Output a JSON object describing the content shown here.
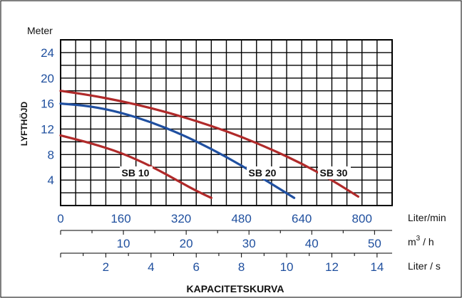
{
  "chart_data": {
    "type": "line",
    "title": "KAPACITETSKURVA",
    "ylabel": "LYFTHÖJD",
    "y_unit_label": "Meter",
    "ylim": [
      0,
      26
    ],
    "y_ticks": [
      4,
      8,
      12,
      16,
      20,
      24
    ],
    "xlim": [
      0,
      880
    ],
    "x_axes": [
      {
        "name": "Liter/min",
        "ticks": [
          0,
          160,
          320,
          480,
          640,
          800
        ],
        "color": "#1f4f9e"
      },
      {
        "name_base": "m",
        "name_sup": "3",
        "name_rest": " / h",
        "ticks": [
          10,
          20,
          30,
          40,
          50
        ],
        "color": "#1f4f9e"
      },
      {
        "name": "Liter / s",
        "ticks": [
          2,
          4,
          6,
          8,
          10,
          12,
          14
        ],
        "color": "#1f4f9e"
      }
    ],
    "grid": true,
    "series": [
      {
        "name": "SB 10",
        "color": "#b02a2a",
        "x": [
          0,
          80,
          160,
          240,
          320,
          360,
          400
        ],
        "y": [
          11,
          9.8,
          8.3,
          6.2,
          3.6,
          2.3,
          1.2
        ]
      },
      {
        "name": "SB 20",
        "color": "#1f4fa0",
        "x": [
          0,
          80,
          160,
          240,
          320,
          400,
          480,
          560,
          620
        ],
        "y": [
          16,
          15.6,
          14.6,
          13.1,
          11.2,
          8.9,
          6.3,
          3.4,
          1.2
        ]
      },
      {
        "name": "SB 30",
        "color": "#b02a2a",
        "x": [
          0,
          80,
          160,
          240,
          320,
          400,
          480,
          560,
          640,
          720,
          790
        ],
        "y": [
          18,
          17.3,
          16.4,
          15.3,
          14.0,
          12.5,
          10.8,
          8.8,
          6.6,
          4.0,
          1.4
        ]
      }
    ]
  }
}
